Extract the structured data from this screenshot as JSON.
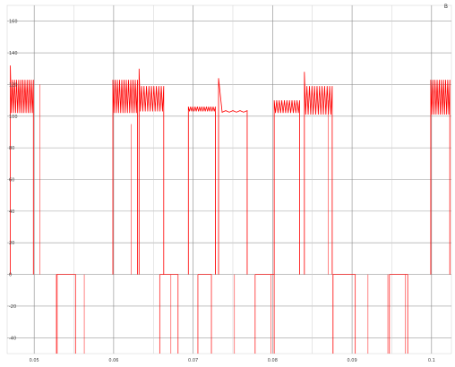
{
  "chart_data": {
    "type": "line",
    "corner_label": "B",
    "title": "",
    "xlabel": "",
    "ylabel": "",
    "xlim": [
      0.0466,
      0.1025
    ],
    "ylim": [
      -50,
      170
    ],
    "grid": true,
    "y_ticks": [
      {
        "value": 160,
        "label": "160"
      },
      {
        "value": 140,
        "label": "140"
      },
      {
        "value": 120,
        "label": "120"
      },
      {
        "value": 100,
        "label": "100"
      },
      {
        "value": 80,
        "label": "80"
      },
      {
        "value": 60,
        "label": "60"
      },
      {
        "value": 40,
        "label": "40"
      },
      {
        "value": 20,
        "label": "20"
      },
      {
        "value": 0,
        "label": "0"
      },
      {
        "value": -20,
        "label": "-20"
      },
      {
        "value": -40,
        "label": "-40"
      }
    ],
    "x_ticks": [
      {
        "value": 0.05,
        "label": "0.05"
      },
      {
        "value": 0.06,
        "label": "0.06"
      },
      {
        "value": 0.07,
        "label": "0.07"
      },
      {
        "value": 0.08,
        "label": "0.08"
      },
      {
        "value": 0.09,
        "label": "0.09"
      },
      {
        "value": 0.1,
        "label": "0.1"
      }
    ],
    "x_minor": [
      0.055,
      0.065,
      0.075,
      0.085,
      0.095
    ],
    "series": [
      {
        "color": "#ff0000",
        "segments": [
          {
            "kind": "pulse",
            "x0": 0.047,
            "x1": 0.0499,
            "y_min": 102,
            "y_max": 123,
            "spike": 132,
            "cycles": 11
          },
          {
            "kind": "pulse",
            "x0": 0.0599,
            "x1": 0.063,
            "y_min": 102,
            "y_max": 123,
            "spike": 123,
            "cycles": 11
          },
          {
            "kind": "pulse",
            "x0": 0.0632,
            "x1": 0.0663,
            "y_min": 103,
            "y_max": 119,
            "spike": 130,
            "cycles": 10
          },
          {
            "kind": "pulse",
            "x0": 0.0694,
            "x1": 0.0728,
            "y_min": 103,
            "y_max": 106,
            "spike": 106,
            "cycles": 12
          },
          {
            "kind": "pulse",
            "x0": 0.0732,
            "x1": 0.0768,
            "y_min": 102.5,
            "y_max": 103.5,
            "spike": 124,
            "cycles": 4
          },
          {
            "kind": "pulse",
            "x0": 0.0802,
            "x1": 0.0834,
            "y_min": 102,
            "y_max": 110,
            "spike": 110,
            "cycles": 10
          },
          {
            "kind": "pulse",
            "x0": 0.084,
            "x1": 0.0875,
            "y_min": 101,
            "y_max": 119,
            "spike": 128,
            "cycles": 11
          },
          {
            "kind": "pulse",
            "x0": 0.0999,
            "x1": 0.1023,
            "y_min": 101,
            "y_max": 123,
            "spike": 123,
            "cycles": 9
          },
          {
            "kind": "negative",
            "x0": 0.0528,
            "x1": 0.0552,
            "y": -50
          },
          {
            "kind": "negative",
            "x0": 0.0658,
            "x1": 0.0681,
            "y": -50
          },
          {
            "kind": "negative",
            "x0": 0.0706,
            "x1": 0.0723,
            "y": -50
          },
          {
            "kind": "negative",
            "x0": 0.0778,
            "x1": 0.0802,
            "y": -50
          },
          {
            "kind": "negative",
            "x0": 0.0876,
            "x1": 0.0904,
            "y": -50
          },
          {
            "kind": "negative",
            "x0": 0.0947,
            "x1": 0.097,
            "y": -50
          },
          {
            "kind": "vline",
            "x": 0.0507,
            "y0": 0,
            "y1": 120
          },
          {
            "kind": "vline",
            "x": 0.0529,
            "y0": 0,
            "y1": -50
          },
          {
            "kind": "vline",
            "x": 0.0563,
            "y0": 0,
            "y1": -50
          },
          {
            "kind": "vline",
            "x": 0.0622,
            "y0": 0,
            "y1": 95
          },
          {
            "kind": "vline",
            "x": 0.0672,
            "y0": 0,
            "y1": -50
          },
          {
            "kind": "vline",
            "x": 0.0728,
            "y0": 0,
            "y1": 103
          },
          {
            "kind": "vline",
            "x": 0.0752,
            "y0": 0,
            "y1": -50
          },
          {
            "kind": "vline",
            "x": 0.0798,
            "y0": 0,
            "y1": -50
          },
          {
            "kind": "vline",
            "x": 0.087,
            "y0": 0,
            "y1": 110
          },
          {
            "kind": "vline",
            "x": 0.0876,
            "y0": 0,
            "y1": -50
          },
          {
            "kind": "vline",
            "x": 0.092,
            "y0": 0,
            "y1": -50
          },
          {
            "kind": "vline",
            "x": 0.0945,
            "y0": 0,
            "y1": -50
          },
          {
            "kind": "vline",
            "x": 0.0967,
            "y0": 0,
            "y1": -50
          }
        ]
      }
    ]
  }
}
